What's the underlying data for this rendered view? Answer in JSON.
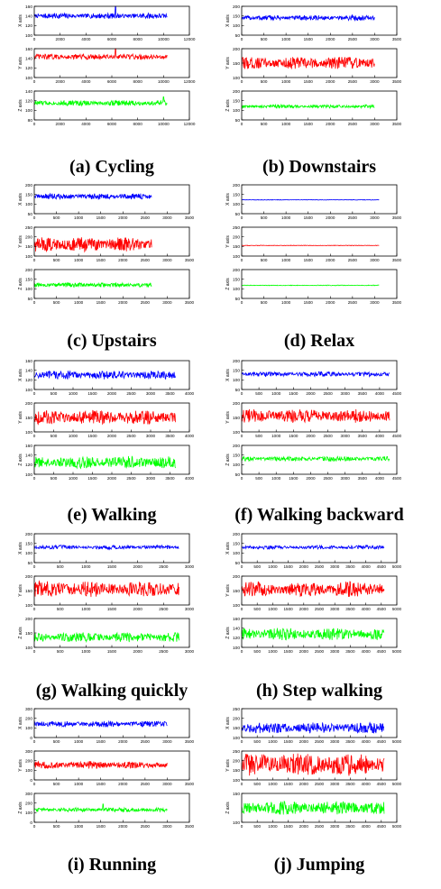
{
  "chart_data": [
    {
      "type": "line",
      "caption": "(a) Cycling",
      "xlim": [
        0,
        12000
      ],
      "xticks": [
        0,
        2000,
        4000,
        6000,
        8000,
        10000,
        12000
      ],
      "n_points": 10300,
      "axes": [
        {
          "ylabel": "X axis",
          "ylim": [
            100,
            160
          ],
          "yticks": [
            100,
            120,
            140,
            160
          ],
          "color": "#0000ff",
          "baseline": 140,
          "amplitude": 6,
          "spike": [
            6300,
            165
          ]
        },
        {
          "ylabel": "Y axis",
          "ylim": [
            100,
            160
          ],
          "yticks": [
            100,
            120,
            140,
            160
          ],
          "color": "#ff0000",
          "baseline": 143,
          "amplitude": 6,
          "spike": [
            6300,
            162
          ]
        },
        {
          "ylabel": "Z axis",
          "ylim": [
            80,
            140
          ],
          "yticks": [
            80,
            100,
            120,
            140
          ],
          "color": "#00ff00",
          "baseline": 115,
          "amplitude": 6,
          "spike": [
            10000,
            128
          ]
        }
      ]
    },
    {
      "type": "line",
      "caption": "(b) Downstairs",
      "xlim": [
        0,
        3500
      ],
      "xticks": [
        0,
        500,
        1000,
        1500,
        2000,
        2500,
        3000,
        3500
      ],
      "n_points": 3000,
      "axes": [
        {
          "ylabel": "X axis",
          "ylim": [
            50,
            200
          ],
          "yticks": [
            50,
            100,
            150,
            200
          ],
          "color": "#0000ff",
          "baseline": 140,
          "amplitude": 14
        },
        {
          "ylabel": "Y axis",
          "ylim": [
            100,
            200
          ],
          "yticks": [
            100,
            150,
            200
          ],
          "color": "#ff0000",
          "baseline": 150,
          "amplitude": 22
        },
        {
          "ylabel": "Z axis",
          "ylim": [
            50,
            200
          ],
          "yticks": [
            50,
            100,
            150,
            200
          ],
          "color": "#00ff00",
          "baseline": 120,
          "amplitude": 9
        }
      ]
    },
    {
      "type": "line",
      "caption": "(c) Upstairs",
      "xlim": [
        0,
        3500
      ],
      "xticks": [
        0,
        500,
        1000,
        1500,
        2000,
        2500,
        3000,
        3500
      ],
      "n_points": 2650,
      "axes": [
        {
          "ylabel": "X axis",
          "ylim": [
            50,
            200
          ],
          "yticks": [
            50,
            100,
            150,
            200
          ],
          "color": "#0000ff",
          "baseline": 140,
          "amplitude": 15
        },
        {
          "ylabel": "Y axis",
          "ylim": [
            100,
            250
          ],
          "yticks": [
            100,
            150,
            200,
            250
          ],
          "color": "#ff0000",
          "baseline": 160,
          "amplitude": 38
        },
        {
          "ylabel": "Z axis",
          "ylim": [
            50,
            200
          ],
          "yticks": [
            50,
            100,
            150,
            200
          ],
          "color": "#00ff00",
          "baseline": 120,
          "amplitude": 12
        }
      ]
    },
    {
      "type": "line",
      "caption": "(d) Relax",
      "xlim": [
        0,
        3500
      ],
      "xticks": [
        0,
        500,
        1000,
        1500,
        2000,
        2500,
        3000,
        3500
      ],
      "n_points": 3100,
      "axes": [
        {
          "ylabel": "X axis",
          "ylim": [
            50,
            200
          ],
          "yticks": [
            50,
            100,
            150,
            200
          ],
          "color": "#0000ff",
          "baseline": 122,
          "amplitude": 1.5
        },
        {
          "ylabel": "Y axis",
          "ylim": [
            100,
            250
          ],
          "yticks": [
            100,
            150,
            200,
            250
          ],
          "color": "#ff0000",
          "baseline": 155,
          "amplitude": 1.5
        },
        {
          "ylabel": "Z axis",
          "ylim": [
            50,
            200
          ],
          "yticks": [
            50,
            100,
            150,
            200
          ],
          "color": "#00ff00",
          "baseline": 118,
          "amplitude": 2
        }
      ]
    },
    {
      "type": "line",
      "caption": "(e) Walking",
      "xlim": [
        0,
        4000
      ],
      "xticks": [
        0,
        500,
        1000,
        1500,
        2000,
        2500,
        3000,
        3500,
        4000
      ],
      "n_points": 3650,
      "axes": [
        {
          "ylabel": "X axis",
          "ylim": [
            100,
            160
          ],
          "yticks": [
            100,
            120,
            140,
            160
          ],
          "color": "#0000ff",
          "baseline": 130,
          "amplitude": 9
        },
        {
          "ylabel": "Y axis",
          "ylim": [
            100,
            200
          ],
          "yticks": [
            100,
            150,
            200
          ],
          "color": "#ff0000",
          "baseline": 150,
          "amplitude": 25
        },
        {
          "ylabel": "Z axis",
          "ylim": [
            100,
            160
          ],
          "yticks": [
            100,
            120,
            140,
            160
          ],
          "color": "#00ff00",
          "baseline": 125,
          "amplitude": 13
        }
      ]
    },
    {
      "type": "line",
      "caption": "(f) Walking backward",
      "xlim": [
        0,
        4500
      ],
      "xticks": [
        0,
        500,
        1000,
        1500,
        2000,
        2500,
        3000,
        3500,
        4000,
        4500
      ],
      "n_points": 4300,
      "axes": [
        {
          "ylabel": "X axis",
          "ylim": [
            50,
            200
          ],
          "yticks": [
            50,
            100,
            150,
            200
          ],
          "color": "#0000ff",
          "baseline": 130,
          "amplitude": 13
        },
        {
          "ylabel": "Y axis",
          "ylim": [
            100,
            200
          ],
          "yticks": [
            100,
            150,
            200
          ],
          "color": "#ff0000",
          "baseline": 155,
          "amplitude": 24
        },
        {
          "ylabel": "Z axis",
          "ylim": [
            50,
            200
          ],
          "yticks": [
            50,
            100,
            150,
            200
          ],
          "color": "#00ff00",
          "baseline": 130,
          "amplitude": 13
        }
      ]
    },
    {
      "type": "line",
      "caption": "(g) Walking quickly",
      "xlim": [
        0,
        3000
      ],
      "xticks": [
        0,
        500,
        1000,
        1500,
        2000,
        2500,
        3000
      ],
      "n_points": 2800,
      "axes": [
        {
          "ylabel": "X axis",
          "ylim": [
            50,
            200
          ],
          "yticks": [
            50,
            100,
            150,
            200
          ],
          "color": "#0000ff",
          "baseline": 130,
          "amplitude": 11
        },
        {
          "ylabel": "Y axis",
          "ylim": [
            100,
            200
          ],
          "yticks": [
            100,
            150,
            200
          ],
          "color": "#ff0000",
          "baseline": 155,
          "amplitude": 28
        },
        {
          "ylabel": "Z axis",
          "ylim": [
            100,
            200
          ],
          "yticks": [
            100,
            150,
            200
          ],
          "color": "#00ff00",
          "baseline": 135,
          "amplitude": 17
        }
      ]
    },
    {
      "type": "line",
      "caption": "(h) Step walking",
      "xlim": [
        0,
        5000
      ],
      "xticks": [
        0,
        500,
        1000,
        1500,
        2000,
        2500,
        3000,
        3500,
        4000,
        4500,
        5000
      ],
      "n_points": 4600,
      "axes": [
        {
          "ylabel": "X axis",
          "ylim": [
            50,
            200
          ],
          "yticks": [
            50,
            100,
            150,
            200
          ],
          "color": "#0000ff",
          "baseline": 130,
          "amplitude": 10
        },
        {
          "ylabel": "Y axis",
          "ylim": [
            100,
            200
          ],
          "yticks": [
            100,
            150,
            200
          ],
          "color": "#ff0000",
          "baseline": 155,
          "amplitude": 27
        },
        {
          "ylabel": "Z axis",
          "ylim": [
            100,
            160
          ],
          "yticks": [
            100,
            120,
            140,
            160
          ],
          "color": "#00ff00",
          "baseline": 128,
          "amplitude": 13
        }
      ]
    },
    {
      "type": "line",
      "caption": "(i) Running",
      "xlim": [
        0,
        3500
      ],
      "xticks": [
        0,
        500,
        1000,
        1500,
        2000,
        2500,
        3000,
        3500
      ],
      "n_points": 3000,
      "axes": [
        {
          "ylabel": "X axis",
          "ylim": [
            0,
            300
          ],
          "yticks": [
            0,
            100,
            200,
            300
          ],
          "color": "#0000ff",
          "baseline": 140,
          "amplitude": 32
        },
        {
          "ylabel": "Y axis",
          "ylim": [
            0,
            300
          ],
          "yticks": [
            0,
            100,
            200,
            300
          ],
          "color": "#ff0000",
          "baseline": 155,
          "amplitude": 38
        },
        {
          "ylabel": "Z axis",
          "ylim": [
            0,
            300
          ],
          "yticks": [
            0,
            100,
            200,
            300
          ],
          "color": "#00ff00",
          "baseline": 130,
          "amplitude": 22,
          "spike": [
            1550,
            190
          ]
        }
      ]
    },
    {
      "type": "line",
      "caption": "(j) Jumping",
      "xlim": [
        0,
        5000
      ],
      "xticks": [
        0,
        500,
        1000,
        1500,
        2000,
        2500,
        3000,
        3500,
        4000,
        4500,
        5000
      ],
      "n_points": 4600,
      "axes": [
        {
          "ylabel": "X axis",
          "ylim": [
            100,
            250
          ],
          "yticks": [
            100,
            150,
            200,
            250
          ],
          "color": "#0000ff",
          "baseline": 150,
          "amplitude": 30
        },
        {
          "ylabel": "Y axis",
          "ylim": [
            100,
            250
          ],
          "yticks": [
            100,
            150,
            200,
            250
          ],
          "color": "#ff0000",
          "baseline": 180,
          "amplitude": 60
        },
        {
          "ylabel": "Z axis",
          "ylim": [
            100,
            150
          ],
          "yticks": [
            100,
            150
          ],
          "color": "#00ff00",
          "baseline": 125,
          "amplitude": 12
        }
      ]
    }
  ]
}
